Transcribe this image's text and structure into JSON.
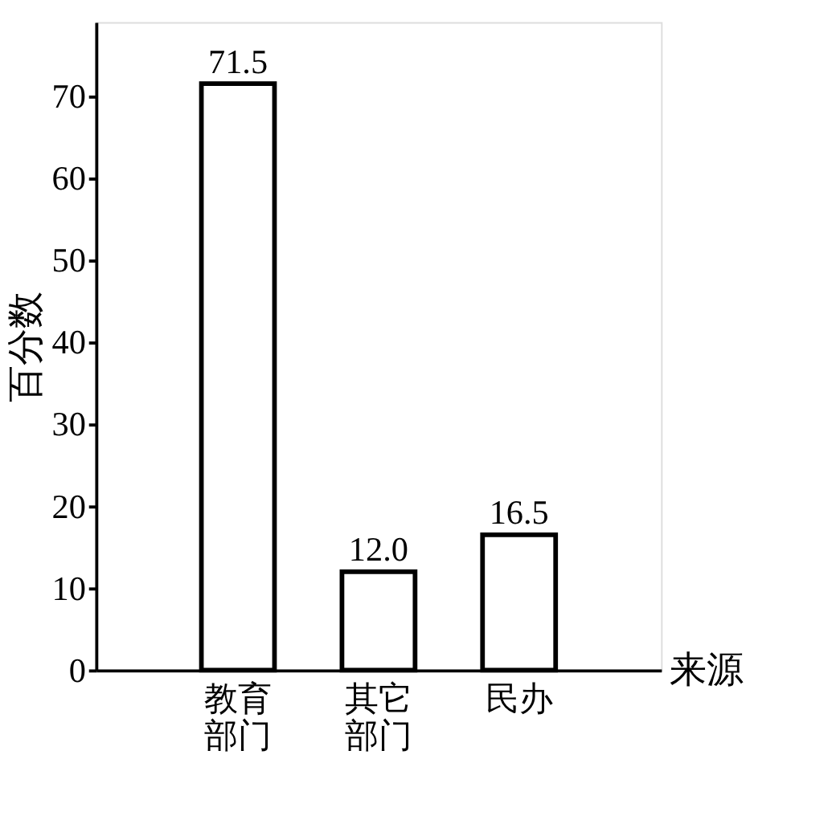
{
  "chart_data": {
    "type": "bar",
    "ylabel": "百分数",
    "xlabel": "来源",
    "categories": [
      "教育部门",
      "其它部门",
      "民办"
    ],
    "values": [
      71.5,
      12.0,
      16.5
    ],
    "value_labels": [
      "71.5",
      "12.0",
      "16.5"
    ],
    "color": "#ffffff",
    "ylim": [
      0,
      79
    ],
    "yticks": [
      0,
      10,
      20,
      30,
      40,
      50,
      60,
      70
    ],
    "grid": false
  }
}
